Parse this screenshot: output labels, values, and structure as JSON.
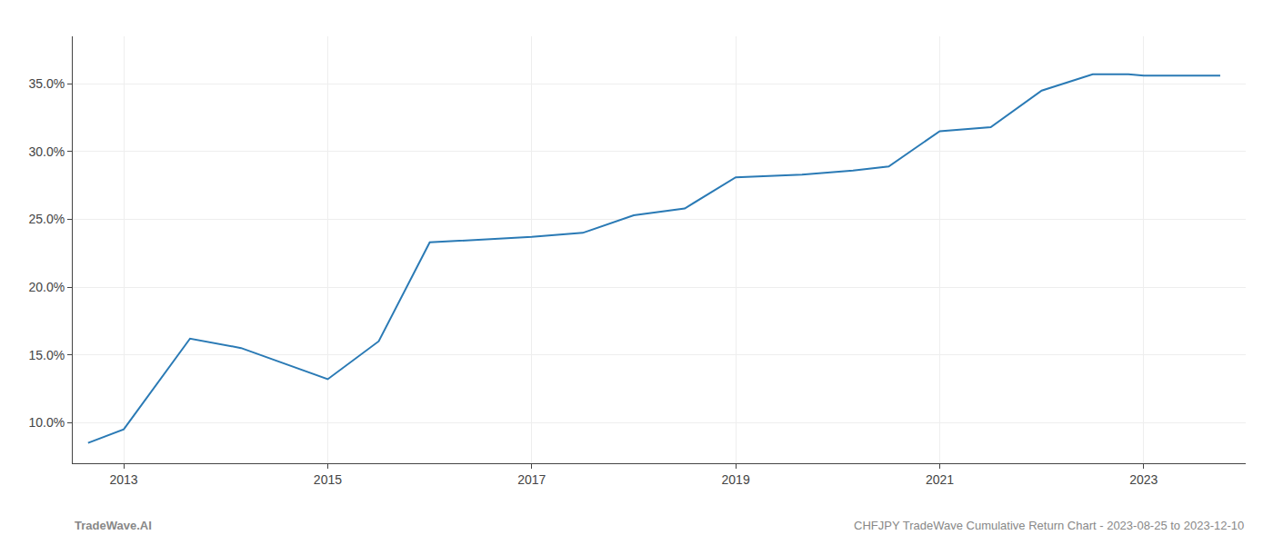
{
  "chart_data": {
    "type": "line",
    "x": [
      2012.65,
      2013.0,
      2013.65,
      2014.15,
      2015.0,
      2015.5,
      2016.0,
      2016.5,
      2017.0,
      2017.5,
      2018.0,
      2018.5,
      2019.0,
      2019.65,
      2020.15,
      2020.5,
      2021.0,
      2021.5,
      2022.0,
      2022.5,
      2022.85,
      2023.0,
      2023.75
    ],
    "values": [
      8.5,
      9.5,
      16.2,
      15.5,
      13.2,
      16.0,
      23.3,
      23.5,
      23.7,
      24.0,
      25.3,
      25.8,
      28.1,
      28.3,
      28.6,
      28.9,
      31.5,
      31.8,
      34.5,
      35.7,
      35.7,
      35.6,
      35.6
    ],
    "color": "#2a7ab5",
    "xlim": [
      2012.5,
      2024.0
    ],
    "xticks": [
      2013,
      2015,
      2017,
      2019,
      2021,
      2023
    ],
    "ylim": [
      7.0,
      38.5
    ],
    "yticks": [
      {
        "value": 10.0,
        "label": "10.0%"
      },
      {
        "value": 15.0,
        "label": "15.0%"
      },
      {
        "value": 20.0,
        "label": "20.0%"
      },
      {
        "value": 25.0,
        "label": "25.0%"
      },
      {
        "value": 30.0,
        "label": "30.0%"
      },
      {
        "value": 35.0,
        "label": "35.0%"
      }
    ],
    "grid": true,
    "annotations": [
      "TradeWave.AI",
      "CHFJPY TradeWave Cumulative Return Chart - 2023-08-25 to 2023-12-10"
    ]
  }
}
